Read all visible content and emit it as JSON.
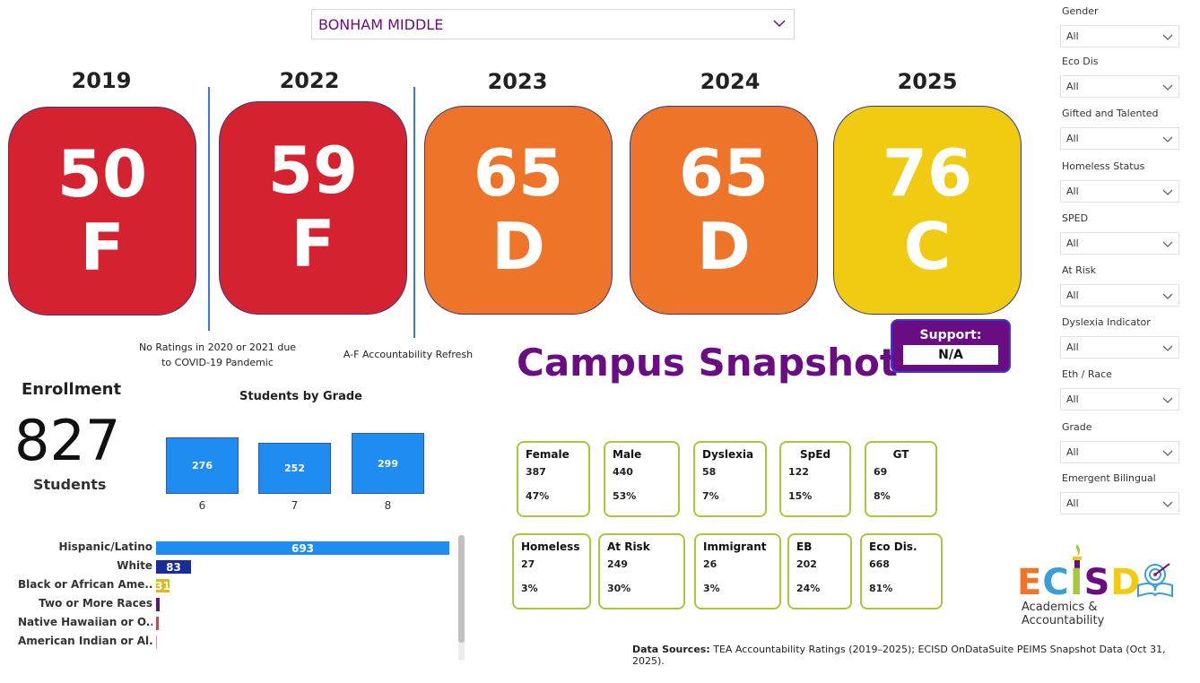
{
  "campus": {
    "selected": "BONHAM MIDDLE"
  },
  "ratings": [
    {
      "year": "2019",
      "score": "50",
      "grade": "F",
      "color": "#d42230"
    },
    {
      "year": "2022",
      "score": "59",
      "grade": "F",
      "color": "#d42230"
    },
    {
      "year": "2023",
      "score": "65",
      "grade": "D",
      "color": "#ee742a"
    },
    {
      "year": "2024",
      "score": "65",
      "grade": "D",
      "color": "#ee742a"
    },
    {
      "year": "2025",
      "score": "76",
      "grade": "C",
      "color": "#f0cb12"
    }
  ],
  "notes": {
    "pandemic_line1": "No Ratings in 2020 or 2021 due",
    "pandemic_line2": "to COVID-19 Pandemic",
    "refresh": "A-F Accountability Refresh"
  },
  "title": "Campus Snapshot",
  "support": {
    "label": "Support:",
    "value": "N/A"
  },
  "enrollment": {
    "title": "Enrollment",
    "count": "827",
    "unit": "Students"
  },
  "grade_chart": {
    "title": "Students by Grade",
    "categories": [
      "6",
      "7",
      "8"
    ],
    "values": [
      276,
      252,
      299
    ]
  },
  "race_chart": {
    "categories": [
      "Hispanic/Latino",
      "White",
      "Black or African Ame...",
      "Two or More Races",
      "Native Hawaiian or O...",
      "American Indian or Al..."
    ],
    "values": [
      693,
      83,
      31,
      null,
      null,
      null
    ],
    "value_labels": [
      "693",
      "83",
      "31",
      "",
      "",
      ""
    ],
    "colors": [
      "#1e8cf0",
      "#1a2c9a",
      "#e0b820",
      "#5a1a7a",
      "#b0545a",
      "#c89ac8"
    ]
  },
  "stats_row1": [
    {
      "label": "Female",
      "count": "387",
      "pct": "47%"
    },
    {
      "label": "Male",
      "count": "440",
      "pct": "53%"
    },
    {
      "label": "Dyslexia",
      "count": "58",
      "pct": "7%"
    },
    {
      "label": "SpEd",
      "count": "122",
      "pct": "15%"
    },
    {
      "label": "GT",
      "count": "69",
      "pct": "8%"
    }
  ],
  "stats_row2": [
    {
      "label": "Homeless",
      "count": "27",
      "pct": "3%"
    },
    {
      "label": "At Risk",
      "count": "249",
      "pct": "30%"
    },
    {
      "label": "Immigrant",
      "count": "26",
      "pct": "3%"
    },
    {
      "label": "EB",
      "count": "202",
      "pct": "24%"
    },
    {
      "label": "Eco Dis.",
      "count": "668",
      "pct": "81%"
    }
  ],
  "logo": {
    "letters": [
      "E",
      "C",
      "I",
      "S",
      "D"
    ],
    "letter_colors": [
      "#ee742a",
      "#3a9ed8",
      "#a8c83c",
      "#6a0d83",
      "#f0cb12"
    ],
    "subtitle": "Academics & Accountability"
  },
  "sources": {
    "label": "Data Sources:",
    "text": "TEA Accountability Ratings (2019–2025); ECISD OnDataSuite PEIMS Snapshot Data (Oct 31, 2025)."
  },
  "filters": [
    {
      "label": "Gender",
      "value": "All"
    },
    {
      "label": "Eco Dis",
      "value": "All"
    },
    {
      "label": "Gifted and Talented",
      "value": "All"
    },
    {
      "label": "Homeless Status",
      "value": "All"
    },
    {
      "label": "SPED",
      "value": "All"
    },
    {
      "label": "At Risk",
      "value": "All"
    },
    {
      "label": "Dyslexia Indicator",
      "value": "All"
    },
    {
      "label": "Eth / Race",
      "value": "All"
    },
    {
      "label": "Grade",
      "value": "All"
    },
    {
      "label": "Emergent Bilingual",
      "value": "All"
    }
  ],
  "chart_data": [
    {
      "type": "bar",
      "title": "Students by Grade",
      "categories": [
        "6",
        "7",
        "8"
      ],
      "values": [
        276,
        252,
        299
      ]
    },
    {
      "type": "bar",
      "categories": [
        "Hispanic/Latino",
        "White",
        "Black or African Ame...",
        "Two or More Races",
        "Native Hawaiian or O...",
        "American Indian or Al..."
      ],
      "values": [
        693,
        83,
        31,
        null,
        null,
        null
      ]
    }
  ]
}
